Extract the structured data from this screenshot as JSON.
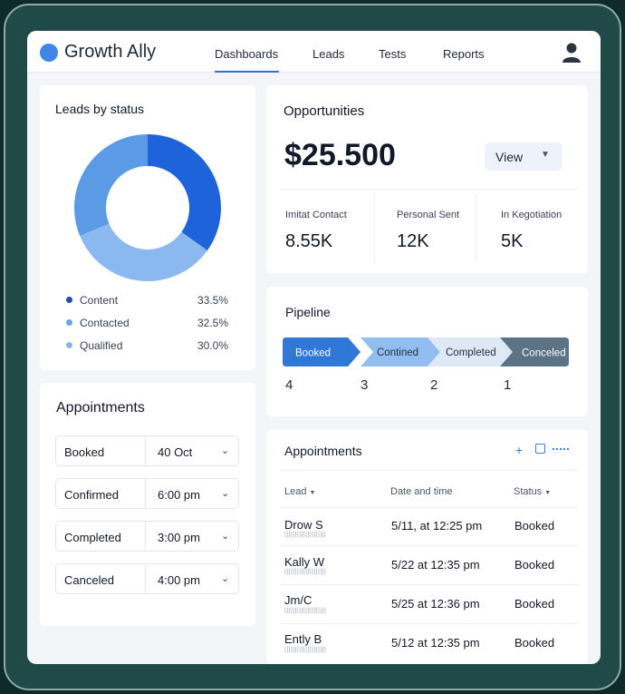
{
  "app": {
    "brand": "Growth Ally"
  },
  "nav": [
    "Dashboards",
    "Leads",
    "Tests",
    "Reports"
  ],
  "colors": {
    "accent": "#2f6fd8",
    "donut_dark": "#1e63da",
    "donut_mid": "#5b9be6",
    "donut_light": "#8bb8ef"
  },
  "leads_by_status": {
    "title": "Leads by status",
    "items": [
      {
        "label": "Content",
        "value": "33.5%"
      },
      {
        "label": "Contacted",
        "value": "32.5%"
      },
      {
        "label": "Qualified",
        "value": "30.0%"
      }
    ]
  },
  "appointments_left": {
    "title": "Appointments",
    "rows": [
      {
        "label": "Booked",
        "value": "40 Oct"
      },
      {
        "label": "Confirmed",
        "value": "6:00 pm"
      },
      {
        "label": "Completed",
        "value": "3:00 pm"
      },
      {
        "label": "Canceled",
        "value": "4:00 pm"
      }
    ]
  },
  "opportunities": {
    "title": "Opportunities",
    "amount": "$25.500",
    "view_label": "View",
    "stats": [
      {
        "label": "Imitat Contact",
        "value": "8.55K"
      },
      {
        "label": "Personal Sent",
        "value": "12K"
      },
      {
        "label": "In  Kegotiation",
        "value": "5K"
      }
    ]
  },
  "pipeline": {
    "title": "Pipeline",
    "stages": [
      {
        "label": "Booked",
        "count": "4"
      },
      {
        "label": "Contined",
        "count": "3"
      },
      {
        "label": "Completed",
        "count": "2"
      },
      {
        "label": "Conceled",
        "count": "1"
      }
    ]
  },
  "appointments_table": {
    "title": "Appointments",
    "columns": [
      "Lead",
      "Date and time",
      "Status"
    ],
    "rows": [
      {
        "lead": "Drow S",
        "sub": "||||||||||||||||||||",
        "datetime": "5/11, at 12:25 pm",
        "status": "Booked"
      },
      {
        "lead": "Kally W",
        "sub": "||||||||||||||||||||",
        "datetime": "5/22 at 12:35 pm",
        "status": "Booked"
      },
      {
        "lead": "Jm/C",
        "sub": "||||||||||||||||||||",
        "datetime": "5/25 at 12:36 pm",
        "status": "Booked"
      },
      {
        "lead": "Ently B",
        "sub": "||||||||||||||||||||",
        "datetime": "5/12 at 12:35 pm",
        "status": "Booked"
      }
    ]
  },
  "chart_data": {
    "type": "pie",
    "categories": [
      "Content",
      "Contacted",
      "Qualified"
    ],
    "values": [
      33.5,
      32.5,
      30.0
    ]
  }
}
